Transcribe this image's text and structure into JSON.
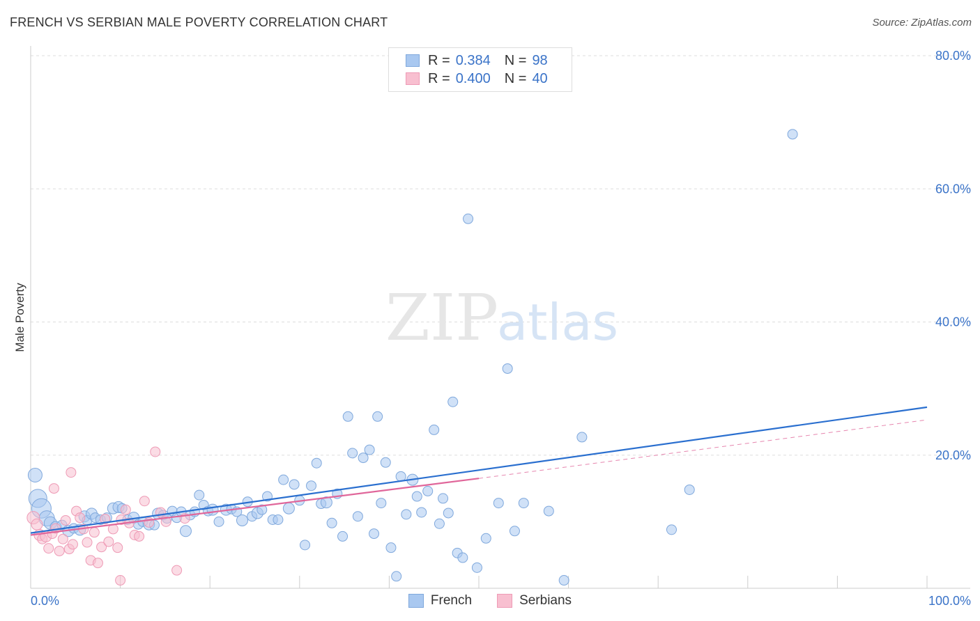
{
  "header": {
    "title": "FRENCH VS SERBIAN MALE POVERTY CORRELATION CHART",
    "source": "Source: ZipAtlas.com"
  },
  "watermark": {
    "zip": "ZIP",
    "atlas": "atlas"
  },
  "colors": {
    "french_fill": "#a9c8f0",
    "french_stroke": "#7fa8dc",
    "french_line": "#2a6fcf",
    "serbians_fill": "#f8bfd0",
    "serbians_stroke": "#ee9ab5",
    "serbians_line": "#e0669a",
    "axis_text": "#3a73c8"
  },
  "legend_top": {
    "rows": [
      {
        "r_label": "R =",
        "r_value": "0.384",
        "n_label": "N =",
        "n_value": "98"
      },
      {
        "r_label": "R =",
        "r_value": "0.400",
        "n_label": "N =",
        "n_value": "40"
      }
    ]
  },
  "legend_bottom": {
    "items": [
      "French",
      "Serbians"
    ]
  },
  "chart_data": {
    "type": "scatter",
    "title": "FRENCH VS SERBIAN MALE POVERTY CORRELATION CHART",
    "xlabel": "",
    "ylabel": "Male Poverty",
    "xlim": [
      0,
      100
    ],
    "ylim": [
      0,
      80
    ],
    "x_tick_labels": [
      "0.0%",
      "100.0%"
    ],
    "y_tick_labels": [
      "20.0%",
      "40.0%",
      "60.0%",
      "80.0%"
    ],
    "y_ticks": [
      20,
      40,
      60,
      80
    ],
    "grid": true,
    "legend_position": "bottom",
    "series": [
      {
        "name": "French",
        "trend": {
          "x": [
            0,
            100
          ],
          "y": [
            8.3,
            27.2
          ]
        },
        "points": [
          [
            0.5,
            17.0,
            10
          ],
          [
            0.8,
            13.5,
            13
          ],
          [
            1.2,
            12.0,
            14
          ],
          [
            1.8,
            10.5,
            11
          ],
          [
            2.2,
            9.8,
            9
          ],
          [
            2.8,
            9.2,
            8
          ],
          [
            3.5,
            9.5,
            7
          ],
          [
            4.2,
            8.6,
            8
          ],
          [
            4.8,
            9.0,
            7
          ],
          [
            5.5,
            8.8,
            8
          ],
          [
            6.0,
            10.8,
            8
          ],
          [
            6.3,
            10.2,
            7
          ],
          [
            6.8,
            11.2,
            8
          ],
          [
            7.2,
            10.6,
            7
          ],
          [
            7.8,
            10.3,
            7
          ],
          [
            8.5,
            10.6,
            7
          ],
          [
            9.2,
            12.0,
            8
          ],
          [
            9.8,
            12.2,
            8
          ],
          [
            10.2,
            12.0,
            7
          ],
          [
            10.8,
            10.3,
            7
          ],
          [
            11.5,
            10.6,
            8
          ],
          [
            12.0,
            9.6,
            7
          ],
          [
            12.5,
            10.0,
            7
          ],
          [
            13.2,
            9.6,
            8
          ],
          [
            13.8,
            9.5,
            7
          ],
          [
            14.2,
            11.2,
            8
          ],
          [
            14.8,
            11.0,
            7
          ],
          [
            15.2,
            10.5,
            7
          ],
          [
            15.8,
            11.6,
            7
          ],
          [
            16.3,
            10.6,
            7
          ],
          [
            16.8,
            11.5,
            7
          ],
          [
            17.3,
            8.6,
            8
          ],
          [
            17.8,
            11.0,
            7
          ],
          [
            18.3,
            11.5,
            7
          ],
          [
            18.8,
            14.0,
            7
          ],
          [
            19.3,
            12.5,
            7
          ],
          [
            19.8,
            11.6,
            7
          ],
          [
            20.3,
            11.8,
            8
          ],
          [
            21.0,
            10.0,
            7
          ],
          [
            21.8,
            11.8,
            8
          ],
          [
            22.4,
            11.9,
            7
          ],
          [
            23.0,
            11.5,
            7
          ],
          [
            23.6,
            10.2,
            8
          ],
          [
            24.2,
            13.0,
            7
          ],
          [
            24.7,
            10.8,
            7
          ],
          [
            25.3,
            11.3,
            8
          ],
          [
            25.8,
            11.8,
            7
          ],
          [
            26.4,
            13.8,
            7
          ],
          [
            27.0,
            10.3,
            7
          ],
          [
            27.6,
            10.3,
            7
          ],
          [
            28.2,
            16.3,
            7
          ],
          [
            28.8,
            12.0,
            8
          ],
          [
            29.4,
            15.6,
            7
          ],
          [
            30.0,
            13.2,
            7
          ],
          [
            30.6,
            6.5,
            7
          ],
          [
            31.3,
            15.4,
            7
          ],
          [
            31.9,
            18.8,
            7
          ],
          [
            32.4,
            12.7,
            7
          ],
          [
            33.0,
            12.9,
            8
          ],
          [
            33.6,
            9.8,
            7
          ],
          [
            34.2,
            14.2,
            7
          ],
          [
            34.8,
            7.8,
            7
          ],
          [
            35.4,
            25.8,
            7
          ],
          [
            35.9,
            20.3,
            7
          ],
          [
            36.5,
            10.8,
            7
          ],
          [
            37.1,
            19.6,
            7
          ],
          [
            37.8,
            20.8,
            7
          ],
          [
            38.3,
            8.2,
            7
          ],
          [
            38.7,
            25.8,
            7
          ],
          [
            39.1,
            12.8,
            7
          ],
          [
            39.6,
            18.9,
            7
          ],
          [
            40.2,
            6.1,
            7
          ],
          [
            40.8,
            1.8,
            7
          ],
          [
            41.3,
            16.8,
            7
          ],
          [
            41.9,
            11.1,
            7
          ],
          [
            42.6,
            16.3,
            8
          ],
          [
            43.1,
            13.8,
            7
          ],
          [
            43.6,
            11.4,
            7
          ],
          [
            44.3,
            14.6,
            7
          ],
          [
            45.0,
            23.8,
            7
          ],
          [
            45.6,
            9.7,
            7
          ],
          [
            46.0,
            13.5,
            7
          ],
          [
            46.6,
            11.3,
            7
          ],
          [
            47.1,
            28.0,
            7
          ],
          [
            47.6,
            5.3,
            7
          ],
          [
            48.2,
            4.6,
            7
          ],
          [
            48.8,
            55.5,
            7
          ],
          [
            49.8,
            3.1,
            7
          ],
          [
            50.8,
            7.5,
            7
          ],
          [
            52.2,
            12.8,
            7
          ],
          [
            53.2,
            33.0,
            7
          ],
          [
            54.0,
            8.6,
            7
          ],
          [
            55.0,
            12.8,
            7
          ],
          [
            57.8,
            11.6,
            7
          ],
          [
            59.5,
            1.2,
            7
          ],
          [
            61.5,
            22.7,
            7
          ],
          [
            71.5,
            8.8,
            7
          ],
          [
            73.5,
            14.8,
            7
          ],
          [
            85.0,
            68.2,
            7
          ]
        ]
      },
      {
        "name": "Serbians",
        "trend": {
          "x": [
            0,
            50
          ],
          "y": [
            8.0,
            16.5
          ]
        },
        "trend_dashed": {
          "x": [
            50,
            100
          ],
          "y": [
            16.5,
            25.3
          ]
        },
        "points": [
          [
            0.3,
            10.6,
            9
          ],
          [
            0.7,
            9.6,
            8
          ],
          [
            1.0,
            8.0,
            8
          ],
          [
            1.3,
            7.4,
            7
          ],
          [
            1.7,
            7.8,
            8
          ],
          [
            2.0,
            6.0,
            7
          ],
          [
            2.4,
            8.2,
            7
          ],
          [
            2.8,
            9.0,
            7
          ],
          [
            3.2,
            5.6,
            7
          ],
          [
            3.6,
            7.4,
            7
          ],
          [
            3.9,
            10.2,
            7
          ],
          [
            4.3,
            5.9,
            7
          ],
          [
            4.7,
            6.6,
            7
          ],
          [
            5.1,
            11.6,
            7
          ],
          [
            5.5,
            10.6,
            7
          ],
          [
            5.9,
            8.9,
            7
          ],
          [
            6.3,
            6.9,
            7
          ],
          [
            6.7,
            4.2,
            7
          ],
          [
            7.1,
            8.4,
            7
          ],
          [
            7.5,
            3.8,
            7
          ],
          [
            7.9,
            6.2,
            7
          ],
          [
            8.3,
            10.4,
            7
          ],
          [
            8.7,
            7.0,
            7
          ],
          [
            9.2,
            8.9,
            7
          ],
          [
            9.7,
            6.1,
            7
          ],
          [
            10.1,
            10.3,
            7
          ],
          [
            10.6,
            11.8,
            7
          ],
          [
            11.0,
            9.8,
            7
          ],
          [
            11.6,
            8.0,
            7
          ],
          [
            12.1,
            7.8,
            7
          ],
          [
            12.7,
            13.1,
            7
          ],
          [
            13.2,
            9.9,
            7
          ],
          [
            13.9,
            20.5,
            7
          ],
          [
            14.5,
            11.4,
            7
          ],
          [
            15.1,
            10.0,
            7
          ],
          [
            16.3,
            2.7,
            7
          ],
          [
            17.2,
            10.5,
            7
          ],
          [
            2.6,
            15.0,
            7
          ],
          [
            4.5,
            17.4,
            7
          ],
          [
            10.0,
            1.2,
            7
          ]
        ]
      }
    ]
  }
}
